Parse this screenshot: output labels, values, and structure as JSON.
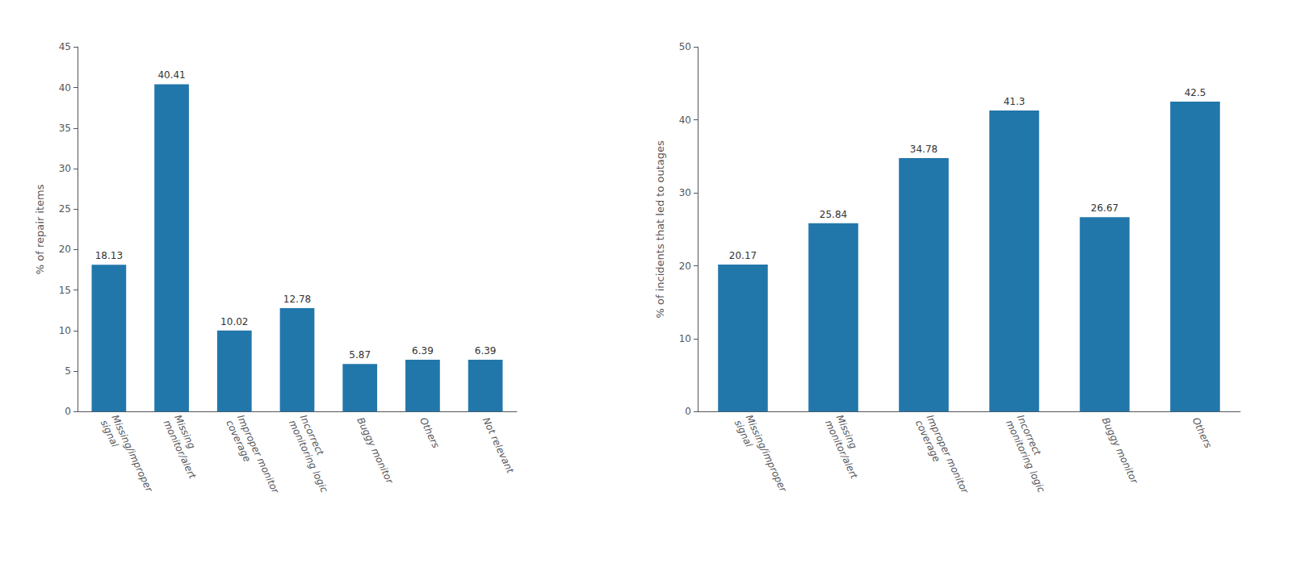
{
  "chart_data": [
    {
      "type": "bar",
      "categories": [
        "Missing/improper\nsignal",
        "Missing\nmonitor/alert",
        "Improper monitor\ncoverage",
        "Incorrect\nmonitoring logic",
        "Buggy monitor",
        "Others",
        "Not relevant"
      ],
      "values": [
        18.13,
        40.41,
        10.02,
        12.78,
        5.87,
        6.39,
        6.39
      ],
      "ylabel": "% of repair items",
      "ylim": [
        0,
        45
      ],
      "yticks": [
        0,
        5,
        10,
        15,
        20,
        25,
        30,
        35,
        40,
        45
      ],
      "color": "#2277aa",
      "data_labels": true,
      "grid": false
    },
    {
      "type": "bar",
      "categories": [
        "Missing/improper\nsignal",
        "Missing\nmonitor/alert",
        "Improper monitor\ncoverage",
        "Incorrect\nmonitoring logic",
        "Buggy monitor",
        "Others"
      ],
      "values": [
        20.17,
        25.84,
        34.78,
        41.3,
        26.67,
        42.5
      ],
      "ylabel": "% of incidents that led to outages",
      "ylim": [
        0,
        50
      ],
      "yticks": [
        0,
        10,
        20,
        30,
        40,
        50
      ],
      "color": "#2277aa",
      "data_labels": true,
      "grid": false
    }
  ]
}
